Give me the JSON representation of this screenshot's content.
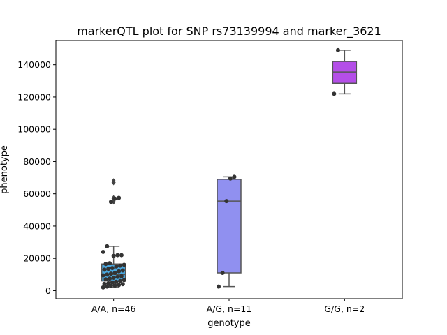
{
  "chart_data": {
    "type": "box",
    "title": "markerQTL plot for SNP rs73139994 and marker_3621",
    "xlabel": "genotype",
    "ylabel": "phenotype",
    "ylim": [
      -5000,
      155000
    ],
    "yticks": [
      0,
      20000,
      40000,
      60000,
      80000,
      100000,
      120000,
      140000
    ],
    "ytick_labels": [
      "0",
      "20000",
      "40000",
      "60000",
      "80000",
      "100000",
      "120000",
      "140000"
    ],
    "categories": [
      "A/A, n=46",
      "A/G, n=11",
      "G/G, n=2"
    ],
    "colors": {
      "box_fills": [
        "#4aa8e0",
        "#9090f0",
        "#b44ee8"
      ],
      "lines": "#555555",
      "points": "#333333"
    },
    "boxes": [
      {
        "category": "A/A, n=46",
        "q1": 6000,
        "median": 10000,
        "q3": 16500,
        "whisker_low": 2000,
        "whisker_high": 27500,
        "outliers": [
          55000,
          57000,
          57500,
          67000,
          68000
        ]
      },
      {
        "category": "A/G, n=11",
        "q1": 11000,
        "median": 55500,
        "q3": 69000,
        "whisker_low": 2500,
        "whisker_high": 70500,
        "outliers": []
      },
      {
        "category": "G/G, n=2",
        "q1": 128500,
        "median": 135500,
        "q3": 142000,
        "whisker_low": 122000,
        "whisker_high": 149000,
        "outliers": []
      }
    ],
    "points": [
      {
        "category": "A/A, n=46",
        "values": [
          2000,
          2500,
          3000,
          3200,
          3500,
          4000,
          4200,
          4500,
          5000,
          5500,
          6000,
          6500,
          7000,
          7500,
          8000,
          8500,
          9000,
          9500,
          10000,
          10500,
          11000,
          12000,
          12500,
          13000,
          13500,
          14000,
          15000,
          15500,
          16000,
          16500,
          17000,
          21500,
          22000,
          22000,
          24000,
          27500,
          55000,
          57000,
          57500
        ]
      },
      {
        "category": "A/G, n=11",
        "values": [
          2500,
          11000,
          55500,
          69500,
          70500
        ]
      },
      {
        "category": "G/G, n=2",
        "values": [
          122000,
          149000
        ]
      }
    ]
  }
}
